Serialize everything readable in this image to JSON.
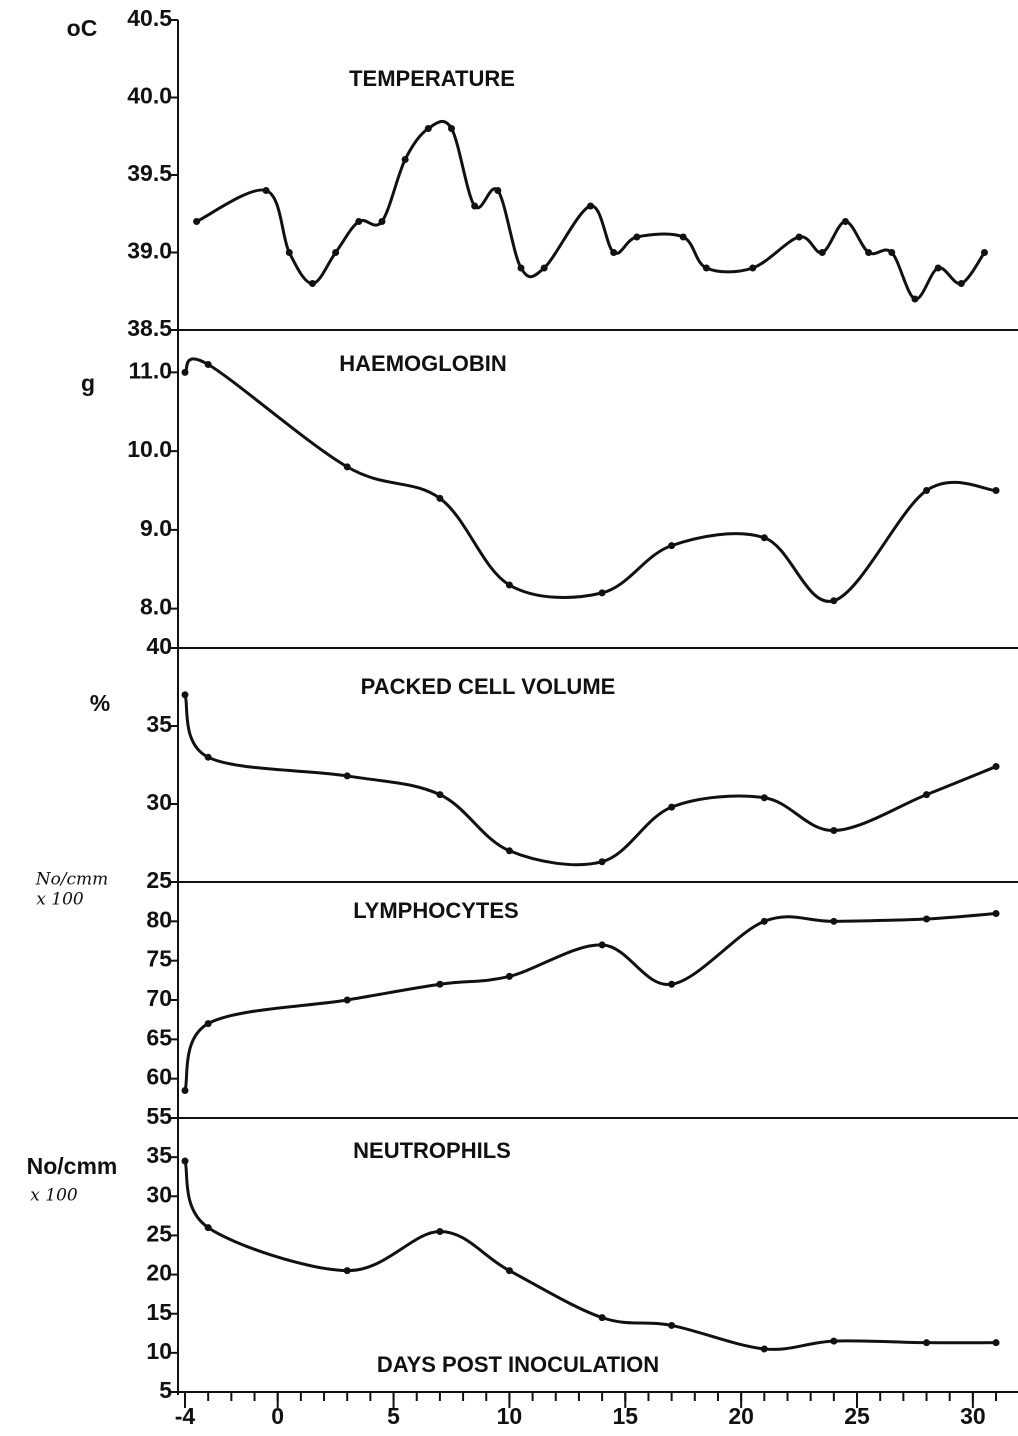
{
  "chart_data": [
    {
      "type": "line",
      "title": "TEMPERATURE",
      "unit": "oC",
      "xlim": [
        -4,
        31.3
      ],
      "ylim": [
        38.5,
        40.5
      ],
      "yticks": [
        38.5,
        {
          "value": 39,
          "label": "39.0"
        },
        39.5,
        {
          "value": 40,
          "label": "40.0"
        },
        40.5
      ],
      "x": [
        -3.5,
        -0.5,
        0.5,
        1.5,
        2.5,
        3.5,
        4.5,
        5.5,
        6.5,
        7.5,
        8.5,
        9.5,
        10.5,
        11.5,
        13.5,
        14.5,
        15.5,
        17.5,
        18.5,
        20.5,
        22.5,
        23.5,
        24.5,
        25.5,
        26.5,
        27.5,
        28.5,
        29.5,
        30.5
      ],
      "values": [
        39.2,
        39.4,
        39.0,
        38.8,
        39.0,
        39.2,
        39.2,
        39.6,
        39.8,
        39.8,
        39.3,
        39.4,
        38.9,
        38.9,
        39.3,
        39.0,
        39.1,
        39.1,
        38.9,
        38.9,
        39.1,
        39.0,
        39.2,
        39.0,
        39.0,
        38.7,
        38.9,
        38.8,
        39.0
      ],
      "color": "#111111"
    },
    {
      "type": "line",
      "title": "HAEMOGLOBIN",
      "unit": "g",
      "xlim": [
        -4,
        31.3
      ],
      "ylim": [
        7.5,
        11.5
      ],
      "yticks": [
        {
          "value": 8,
          "label": "8.0"
        },
        {
          "value": 9,
          "label": "9.0"
        },
        {
          "value": 10,
          "label": "10.0"
        },
        {
          "value": 11,
          "label": "11.0"
        }
      ],
      "x": [
        -4,
        -3,
        3,
        7,
        10,
        14,
        17,
        21,
        24,
        28,
        31
      ],
      "values": [
        11.0,
        11.1,
        9.8,
        9.4,
        8.3,
        8.2,
        8.8,
        8.9,
        8.1,
        9.5,
        9.5
      ],
      "color": "#111111"
    },
    {
      "type": "line",
      "title": "PACKED CELL VOLUME",
      "unit": "%",
      "xlim": [
        -4,
        31.3
      ],
      "ylim": [
        25,
        40
      ],
      "yticks": [
        25,
        30,
        35,
        40
      ],
      "x": [
        -4,
        -3,
        3,
        7,
        10,
        14,
        17,
        21,
        24,
        28,
        31
      ],
      "values": [
        37,
        33,
        31.8,
        30.6,
        27,
        26.3,
        29.8,
        30.4,
        28.3,
        30.6,
        32.4
      ],
      "color": "#111111"
    },
    {
      "type": "line",
      "title": "LYMPHOCYTES",
      "unit": "No/cmm",
      "unit2": "x 100",
      "xlim": [
        -4,
        31.3
      ],
      "ylim": [
        55,
        85
      ],
      "yticks": [
        55,
        60,
        65,
        70,
        75,
        80
      ],
      "x": [
        -4,
        -3,
        3,
        7,
        10,
        14,
        17,
        21,
        24,
        28,
        31
      ],
      "values": [
        58.5,
        67,
        70,
        72,
        73,
        77,
        72,
        80,
        80,
        80.3,
        81
      ],
      "color": "#111111"
    },
    {
      "type": "line",
      "title": "NEUTROPHILS",
      "unit": "No/cmm",
      "unit2": "x 100",
      "xlim": [
        -4,
        31.3
      ],
      "ylim": [
        5,
        40
      ],
      "yticks": [
        5,
        10,
        15,
        20,
        25,
        30,
        35
      ],
      "x": [
        -4,
        -3,
        3,
        7,
        10,
        14,
        17,
        21,
        24,
        28,
        31
      ],
      "values": [
        34.5,
        26,
        20.5,
        25.5,
        20.5,
        14.5,
        13.5,
        10.5,
        11.5,
        11.3,
        11.3
      ],
      "color": "#111111",
      "xlabel": "DAYS POST INOCULATION",
      "xticks": [
        -4,
        0,
        5,
        10,
        15,
        20,
        25,
        30
      ],
      "xminorticks": [
        -4,
        -3,
        -2,
        -1,
        0,
        1,
        2,
        3,
        4,
        5,
        6,
        7,
        8,
        9,
        10,
        11,
        12,
        13,
        14,
        15,
        16,
        17,
        18,
        19,
        20,
        21,
        22,
        23,
        24,
        25,
        26,
        27,
        28,
        29,
        30,
        31
      ]
    }
  ]
}
